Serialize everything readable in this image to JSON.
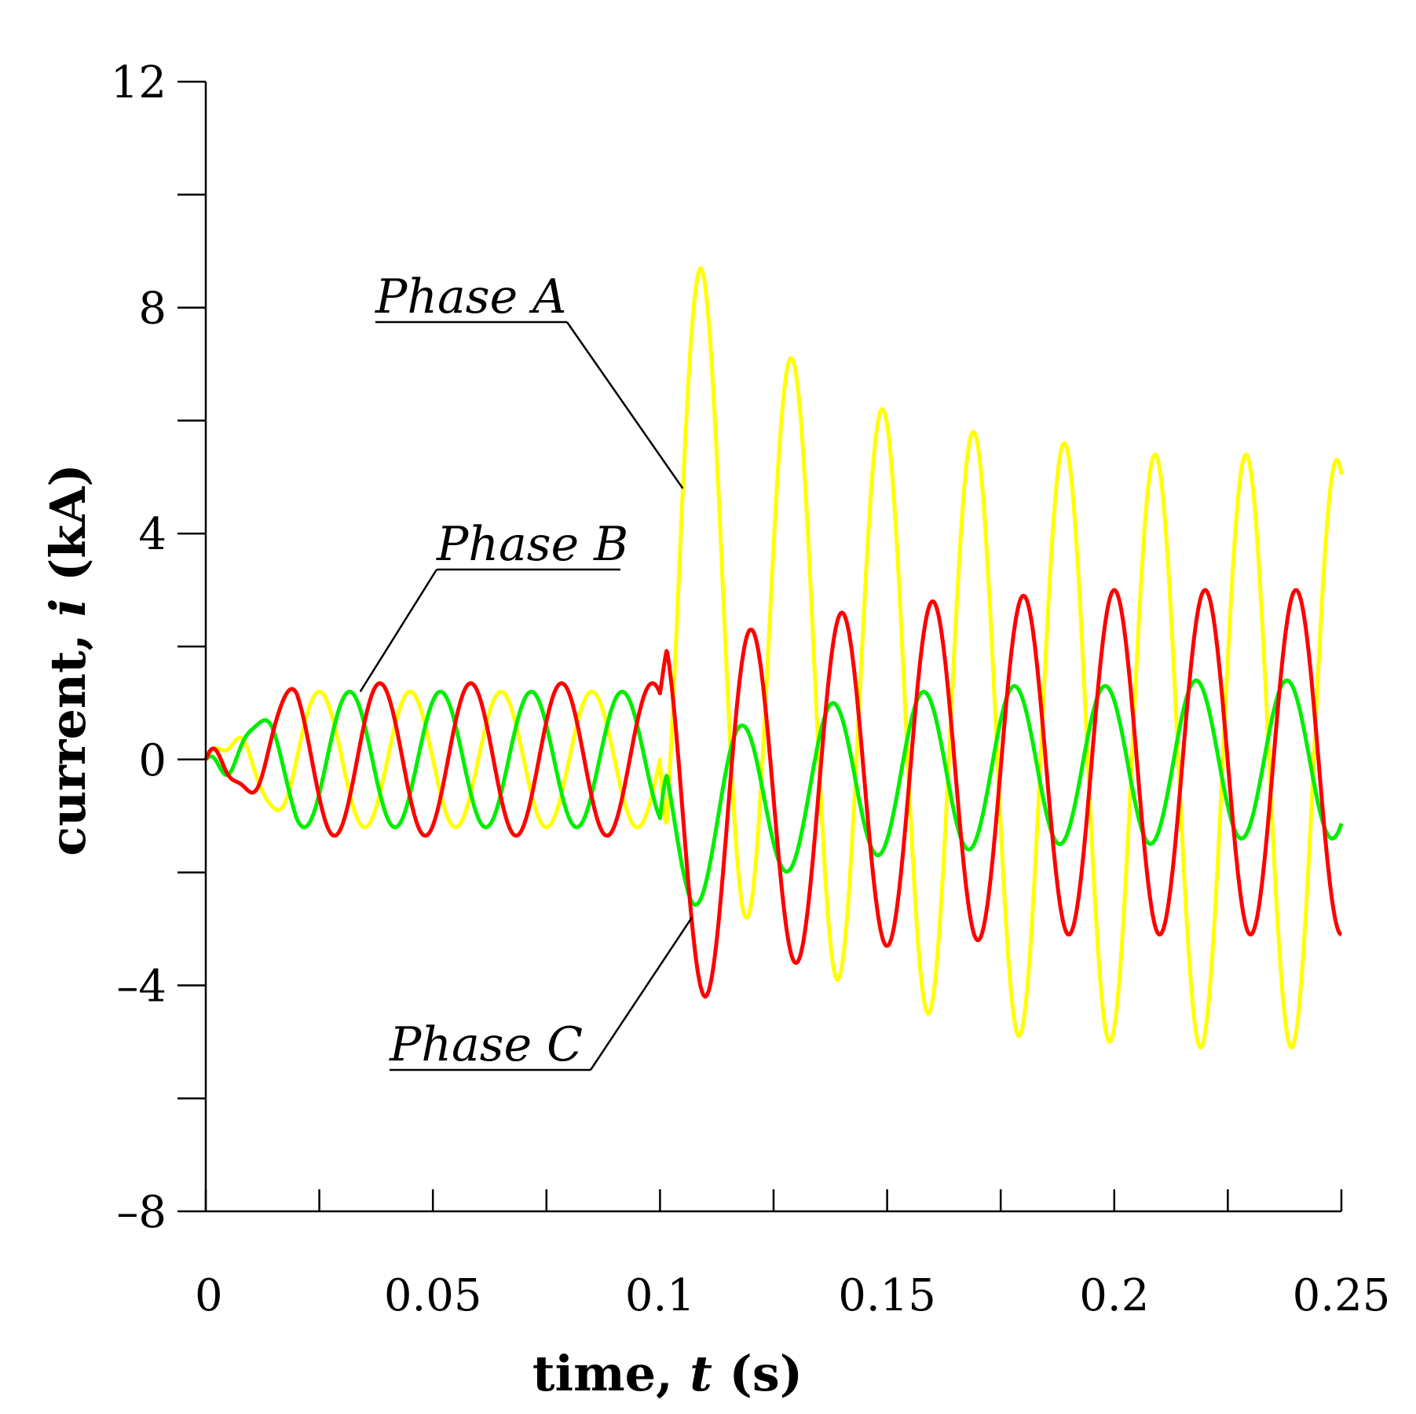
{
  "chart_data": {
    "type": "line",
    "xlabel": "time, t (s)",
    "ylabel": "current, i (kA)",
    "xlabel_parts": [
      "time, ",
      "t",
      " (s)"
    ],
    "ylabel_parts": [
      "current, ",
      "i",
      " (kA)"
    ],
    "xlim": [
      0,
      0.25
    ],
    "ylim": [
      -8,
      12
    ],
    "x_ticks": [
      0,
      0.05,
      0.1,
      0.15,
      0.2,
      0.25
    ],
    "x_tick_labels": [
      "0",
      "0.05",
      "0.1",
      "0.15",
      "0.2",
      "0.25"
    ],
    "x_minor_step": 0.025,
    "y_ticks": [
      -8,
      -4,
      0,
      4,
      8,
      12
    ],
    "y_tick_labels": [
      "–8",
      "–4",
      "0",
      "4",
      "8",
      "12"
    ],
    "y_minor_step": 2,
    "fault_time": 0.1,
    "frequency_hz": 50,
    "series": [
      {
        "name": "Phase A",
        "color": "#ffff00",
        "pre_fault": {
          "amplitude": 1.2,
          "phase_deg": 0
        },
        "post_fault_peaks": [
          {
            "t": 0.109,
            "i": 8.7
          },
          {
            "t": 0.129,
            "i": 7.1
          },
          {
            "t": 0.149,
            "i": 6.2
          },
          {
            "t": 0.169,
            "i": 5.8
          },
          {
            "t": 0.189,
            "i": 5.6
          },
          {
            "t": 0.209,
            "i": 5.4
          },
          {
            "t": 0.229,
            "i": 5.4
          },
          {
            "t": 0.25,
            "i": 5.3
          }
        ],
        "post_fault_troughs": [
          {
            "t": 0.119,
            "i": -2.8
          },
          {
            "t": 0.139,
            "i": -3.9
          },
          {
            "t": 0.159,
            "i": -4.5
          },
          {
            "t": 0.179,
            "i": -4.9
          },
          {
            "t": 0.199,
            "i": -5.0
          },
          {
            "t": 0.219,
            "i": -5.1
          },
          {
            "t": 0.239,
            "i": -5.1
          }
        ]
      },
      {
        "name": "Phase B",
        "color": "#00ee00",
        "pre_fault": {
          "amplitude": 1.2,
          "phase_deg": -120
        },
        "post_fault_peaks": [
          {
            "t": 0.118,
            "i": 0.6
          },
          {
            "t": 0.138,
            "i": 1.0
          },
          {
            "t": 0.158,
            "i": 1.2
          },
          {
            "t": 0.178,
            "i": 1.3
          },
          {
            "t": 0.198,
            "i": 1.3
          },
          {
            "t": 0.218,
            "i": 1.4
          },
          {
            "t": 0.238,
            "i": 1.4
          }
        ],
        "post_fault_troughs": [
          {
            "t": 0.107,
            "i": -2.6
          },
          {
            "t": 0.127,
            "i": -2.0
          },
          {
            "t": 0.147,
            "i": -1.7
          },
          {
            "t": 0.167,
            "i": -1.6
          },
          {
            "t": 0.187,
            "i": -1.5
          },
          {
            "t": 0.207,
            "i": -1.5
          },
          {
            "t": 0.227,
            "i": -1.4
          },
          {
            "t": 0.247,
            "i": -1.4
          }
        ]
      },
      {
        "name": "Phase C",
        "color": "#ff0000",
        "pre_fault": {
          "amplitude": 1.35,
          "phase_deg": 120
        },
        "post_fault_peaks": [
          {
            "t": 0.12,
            "i": 2.3
          },
          {
            "t": 0.14,
            "i": 2.6
          },
          {
            "t": 0.16,
            "i": 2.8
          },
          {
            "t": 0.18,
            "i": 2.9
          },
          {
            "t": 0.2,
            "i": 3.0
          },
          {
            "t": 0.22,
            "i": 3.0
          },
          {
            "t": 0.24,
            "i": 3.0
          }
        ],
        "post_fault_troughs": [
          {
            "t": 0.11,
            "i": -4.2
          },
          {
            "t": 0.13,
            "i": -3.6
          },
          {
            "t": 0.15,
            "i": -3.3
          },
          {
            "t": 0.17,
            "i": -3.2
          },
          {
            "t": 0.19,
            "i": -3.1
          },
          {
            "t": 0.21,
            "i": -3.1
          },
          {
            "t": 0.23,
            "i": -3.1
          },
          {
            "t": 0.25,
            "i": -3.1
          }
        ]
      }
    ],
    "annotations": [
      {
        "text": "Phase A",
        "series": "Phase A",
        "points_to": {
          "t": 0.105,
          "i": 4.8
        }
      },
      {
        "text": "Phase B",
        "series": "Phase B",
        "points_to": {
          "t": 0.034,
          "i": 1.2
        }
      },
      {
        "text": "Phase C",
        "series": "Phase C",
        "points_to": {
          "t": 0.107,
          "i": -2.8
        }
      }
    ]
  }
}
